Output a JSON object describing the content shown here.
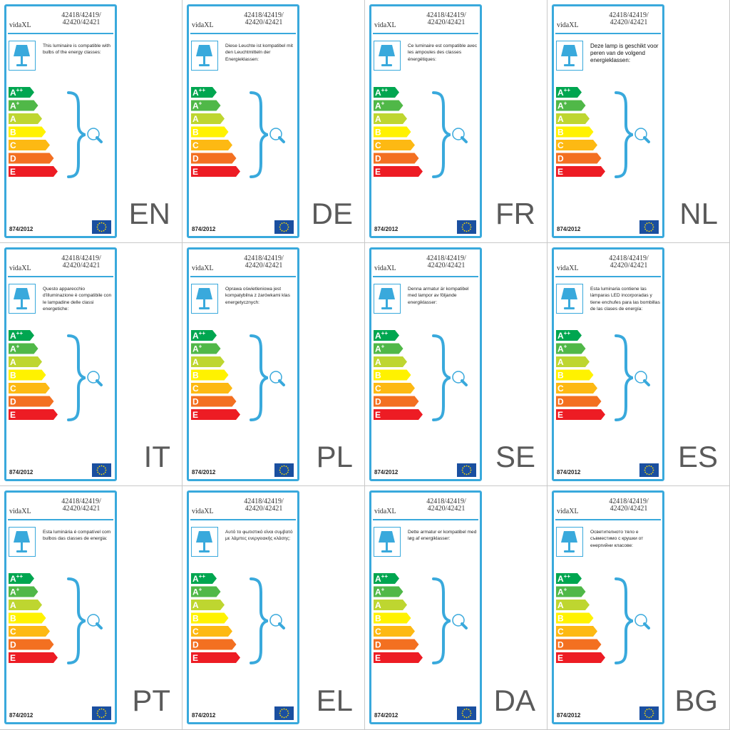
{
  "common": {
    "brand": "vidaXL",
    "model_line1": "42418/42419/",
    "model_line2": "42420/42421",
    "regulation": "874/2012",
    "energy_classes": [
      "A++",
      "A+",
      "A",
      "B",
      "C",
      "D",
      "E"
    ],
    "class_colors": [
      "#00a650",
      "#50b848",
      "#bed630",
      "#fff200",
      "#fdb913",
      "#f37021",
      "#ed1c24"
    ],
    "accent_color": "#39a9dc",
    "icons": [
      "lamp-icon",
      "bracket-icon",
      "bulb-icon",
      "eu-flag-icon"
    ]
  },
  "panels": [
    {
      "lang": "EN",
      "text": "This luminaire is compatible with bulbs of the energy classes:"
    },
    {
      "lang": "DE",
      "text": "Diese Leuchte ist kompatibel mit den Leuchtmitteln der Energieklassen:"
    },
    {
      "lang": "FR",
      "text": "Ce luminaire est compatible avec les ampoules des classes énergétiques:"
    },
    {
      "lang": "NL",
      "text": "Deze lamp is geschikt voor peren van de volgend energieklassen:"
    },
    {
      "lang": "IT",
      "text": "Questo apparecchio d'illuminazione è compatibile con le lampadine delle classi energetiche:"
    },
    {
      "lang": "PL",
      "text": "Oprawa oświetleniowa jest kompatybilna z żarówkami klas energetycznych:"
    },
    {
      "lang": "SE",
      "text": "Denna armatur är kompatibel med lampor av följande energiklasser:"
    },
    {
      "lang": "ES",
      "text": "Esta luminaria contiene las lámparas LED incorporadas y tiene enchufes para las bombillas de las clases de energía:"
    },
    {
      "lang": "PT",
      "text": "Esta luminária é compatível com bulbos das classes de energia:"
    },
    {
      "lang": "EL",
      "text": "Αυτό το φωτιστικό είναι συμβατό με λάμπες ενεργειακής κλάσης:"
    },
    {
      "lang": "DA",
      "text": "Dette armatur er kompatibel med løg af energiklasser:"
    },
    {
      "lang": "BG",
      "text": "Осветителното тяло е съвместимо с крушки от енергийни класове:"
    }
  ]
}
